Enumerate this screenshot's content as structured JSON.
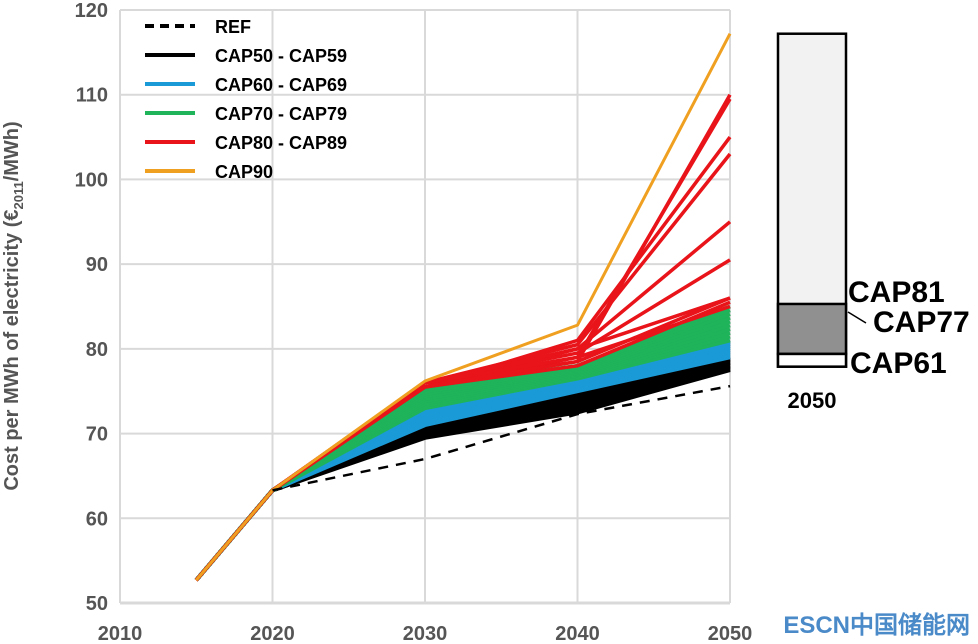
{
  "chart_data": {
    "type": "line",
    "ylabel": "Cost per MWh of electricity (€2011/MWh)",
    "ylabel_main": "Cost per MWh of electricity (€",
    "ylabel_sub": "2011",
    "ylabel_end": "/MWh)",
    "xlim": [
      2010,
      2050
    ],
    "ylim": [
      50,
      120
    ],
    "xticks": [
      "2010",
      "2020",
      "2030",
      "2040",
      "2050"
    ],
    "yticks": [
      "50",
      "60",
      "70",
      "80",
      "90",
      "100",
      "110",
      "120"
    ],
    "grid": true,
    "legend_position": "top-left",
    "legend": [
      {
        "name": "REF",
        "color": "#000000",
        "dashed": true
      },
      {
        "name": "CAP50 - CAP59",
        "color": "#000000"
      },
      {
        "name": "CAP60 - CAP69",
        "color": "#1a9ad6"
      },
      {
        "name": "CAP70 - CAP79",
        "color": "#1fb35a"
      },
      {
        "name": "CAP80 - CAP89",
        "color": "#e8141a"
      },
      {
        "name": "CAP90",
        "color": "#f0a020"
      }
    ],
    "x": [
      2015,
      2020,
      2030,
      2040,
      2050
    ],
    "series": [
      {
        "group": "CAP50 - CAP59",
        "range": {
          "2030": [
            69.5,
            71
          ],
          "2040": [
            72.5,
            75
          ],
          "2050": [
            77.5,
            79
          ]
        },
        "count": 10
      },
      {
        "group": "CAP60 - CAP69",
        "range": {
          "2030": [
            71,
            73.5
          ],
          "2040": [
            75,
            76.5
          ],
          "2050": [
            79,
            81
          ]
        },
        "count": 10
      },
      {
        "group": "CAP70 - CAP79",
        "range": {
          "2030": [
            73,
            75.5
          ],
          "2040": [
            76.5,
            78
          ],
          "2050": [
            81,
            85
          ]
        },
        "count": 10
      },
      {
        "group": "CAP80 - CAP89",
        "lines_2040": [
          78,
          78.5,
          79,
          79.5,
          80,
          80.5,
          81,
          79,
          78.5,
          80
        ],
        "lines_2050": [
          85.5,
          86,
          85,
          90.5,
          95,
          103,
          105,
          109.5,
          110,
          86
        ]
      },
      {
        "group": "CAP90",
        "values": [
          52.7,
          63.3,
          76.2,
          82.8,
          117.2
        ]
      },
      {
        "group": "REF",
        "values": [
          null,
          63.3,
          67,
          72.3,
          75.6
        ]
      }
    ],
    "common_start": [
      52.7,
      63.3
    ],
    "red_2030": [
      75.5,
      76
    ],
    "bar": {
      "label": "2050",
      "min": 77.9,
      "max": 117.2,
      "segments": [
        {
          "name": "CAP61",
          "value": 79.4
        },
        {
          "name": "CAP77",
          "value": null
        },
        {
          "name": "CAP81",
          "value": 85.3
        }
      ]
    }
  },
  "watermark": "ESCN中国储能网"
}
